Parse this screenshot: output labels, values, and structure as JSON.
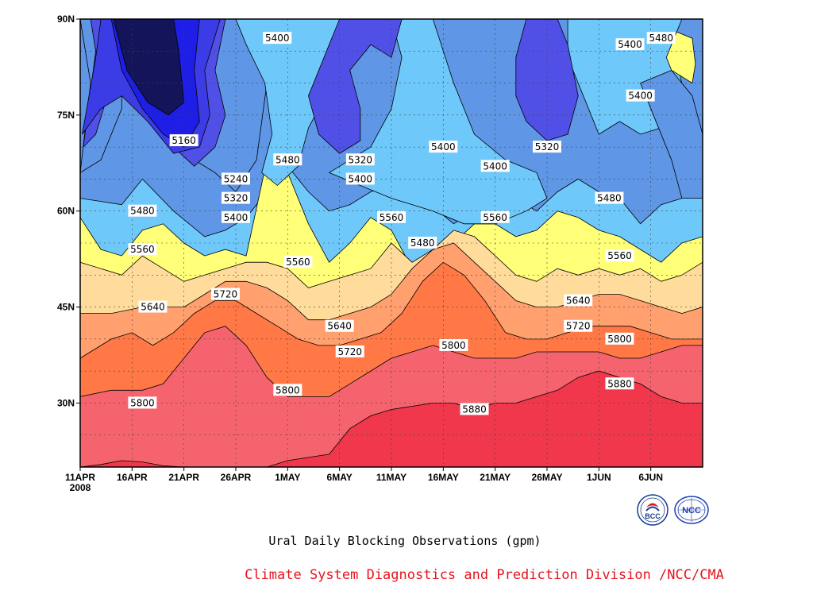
{
  "chart_data": {
    "type": "contour",
    "title": "Ural Daily Blocking Observations (gpm)",
    "credit": "Climate System Diagnostics and Prediction Division /NCC/CMA",
    "x_ticks": [
      "11APR",
      "16APR",
      "21APR",
      "26APR",
      "1MAY",
      "6MAY",
      "11MAY",
      "16MAY",
      "21MAY",
      "26MAY",
      "1JUN",
      "6JUN"
    ],
    "year_label": "2008",
    "y_ticks": [
      "30N",
      "45N",
      "60N",
      "75N",
      "90N"
    ],
    "ylim": [
      "20N",
      "90N"
    ],
    "grid": true,
    "contour_levels": [
      5160,
      5240,
      5320,
      5400,
      5480,
      5560,
      5640,
      5720,
      5800,
      5880
    ],
    "contour_labels": [
      {
        "date": "21APR",
        "lat": "71N",
        "value": "5160"
      },
      {
        "date": "26APR",
        "lat": "65N",
        "value": "5240"
      },
      {
        "date": "26APR",
        "lat": "62N",
        "value": "5320"
      },
      {
        "date": "26APR",
        "lat": "59N",
        "value": "5400"
      },
      {
        "date": "30APR",
        "lat": "87N",
        "value": "5400"
      },
      {
        "date": "1MAY",
        "lat": "68N",
        "value": "5480"
      },
      {
        "date": "17APR",
        "lat": "60N",
        "value": "5480"
      },
      {
        "date": "17APR",
        "lat": "54N",
        "value": "5560"
      },
      {
        "date": "18APR",
        "lat": "45N",
        "value": "5640"
      },
      {
        "date": "25APR",
        "lat": "47N",
        "value": "5720"
      },
      {
        "date": "17APR",
        "lat": "30N",
        "value": "5800"
      },
      {
        "date": "1MAY",
        "lat": "32N",
        "value": "5800"
      },
      {
        "date": "2MAY",
        "lat": "52N",
        "value": "5560"
      },
      {
        "date": "6MAY",
        "lat": "42N",
        "value": "5640"
      },
      {
        "date": "7MAY",
        "lat": "38N",
        "value": "5720"
      },
      {
        "date": "8MAY",
        "lat": "68N",
        "value": "5320"
      },
      {
        "date": "8MAY",
        "lat": "65N",
        "value": "5400"
      },
      {
        "date": "11MAY",
        "lat": "59N",
        "value": "5560"
      },
      {
        "date": "14MAY",
        "lat": "55N",
        "value": "5480"
      },
      {
        "date": "16MAY",
        "lat": "70N",
        "value": "5400"
      },
      {
        "date": "17MAY",
        "lat": "39N",
        "value": "5800"
      },
      {
        "date": "19MAY",
        "lat": "29N",
        "value": "5880"
      },
      {
        "date": "21MAY",
        "lat": "59N",
        "value": "5560"
      },
      {
        "date": "21MAY",
        "lat": "67N",
        "value": "5400"
      },
      {
        "date": "26MAY",
        "lat": "70N",
        "value": "5320"
      },
      {
        "date": "29MAY",
        "lat": "46N",
        "value": "5640"
      },
      {
        "date": "29MAY",
        "lat": "42N",
        "value": "5720"
      },
      {
        "date": "1JUN",
        "lat": "62N",
        "value": "5480"
      },
      {
        "date": "2JUN",
        "lat": "40N",
        "value": "5800"
      },
      {
        "date": "2JUN",
        "lat": "33N",
        "value": "5880"
      },
      {
        "date": "2JUN",
        "lat": "53N",
        "value": "5560"
      },
      {
        "date": "3JUN",
        "lat": "86N",
        "value": "5400"
      },
      {
        "date": "4JUN",
        "lat": "78N",
        "value": "5400"
      },
      {
        "date": "6JUN",
        "lat": "87N",
        "value": "5480"
      }
    ],
    "colors": {
      "5160-": "#14145a",
      "5160": "#1e1ee6",
      "5240": "#3c3ce6",
      "5320": "#5050e6",
      "5400": "#5f96e6",
      "5480": "#6ec8fa",
      "5560": "#ffff78",
      "5640": "#ffdc9b",
      "5720": "#ffa06e",
      "5800": "#ff7846",
      "5880": "#f5646e",
      "5880+": "#f0374b"
    }
  },
  "credit_color": "#e6141e",
  "logos": [
    "BCC",
    "NCC"
  ]
}
